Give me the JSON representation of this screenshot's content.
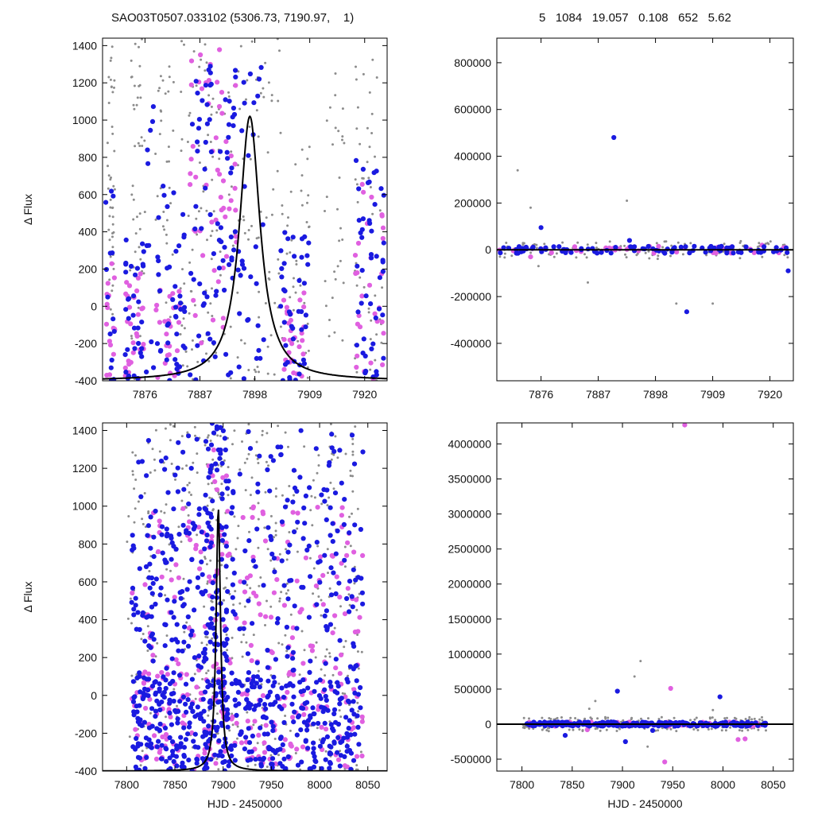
{
  "header": {
    "left": "SAO03T0507.033102 (5306.73, 7190.97,    1)",
    "right": "5   1084   19.057   0.108   652   5.62"
  },
  "colors": {
    "blue": "#1a1ae0",
    "magenta": "#e060e0",
    "gray": "#8c8c8c",
    "model": "#000000"
  },
  "chart_data": [
    {
      "type": "scatter",
      "id": "top-left",
      "title": "",
      "xlabel": "",
      "ylabel": "Δ Flux",
      "xlim": [
        7867.5,
        7924.5
      ],
      "ylim": [
        -400,
        1440
      ],
      "xticks": [
        7876,
        7887,
        7898,
        7909,
        7920
      ],
      "yticks": [
        -400,
        -200,
        0,
        200,
        400,
        600,
        800,
        1000,
        1200,
        1400
      ],
      "model": {
        "type": "lorentzian",
        "center": 7897.0,
        "amplitude": 1420,
        "baseline": -400,
        "width": 2.5
      },
      "series": [
        {
          "color": "gray",
          "clusters": [
            [
              7868.5,
              7870,
              -50,
              1400,
              45
            ],
            [
              7873,
              7876,
              -400,
              1440,
              45
            ],
            [
              7878,
              7882,
              -100,
              1300,
              35
            ],
            [
              7883,
              7891,
              -400,
              1440,
              80
            ],
            [
              7891,
              7904,
              -400,
              1440,
              90
            ],
            [
              7904,
              7909,
              -400,
              900,
              35
            ],
            [
              7912,
              7916,
              -200,
              1300,
              30
            ],
            [
              7918,
              7924,
              -400,
              1440,
              45
            ]
          ]
        },
        {
          "color": "magenta",
          "clusters": [
            [
              7868,
              7870,
              -400,
              300,
              16
            ],
            [
              7872,
              7876,
              -400,
              200,
              28
            ],
            [
              7878,
              7883,
              -400,
              100,
              28
            ],
            [
              7885,
              7895,
              -200,
              1440,
              55
            ],
            [
              7903,
              7908,
              -400,
              100,
              28
            ],
            [
              7918,
              7924,
              -400,
              700,
              30
            ]
          ]
        },
        {
          "color": "blue",
          "clusters": [
            [
              7868,
              7870,
              -400,
              650,
              14
            ],
            [
              7872,
              7876,
              -400,
              400,
              34
            ],
            [
              7876,
              7878,
              -400,
              1100,
              10
            ],
            [
              7878,
              7884,
              -400,
              650,
              42
            ],
            [
              7885,
              7896,
              -400,
              1440,
              90
            ],
            [
              7896,
              7900,
              -300,
              1300,
              18
            ],
            [
              7903,
              7909,
              -400,
              400,
              42
            ],
            [
              7918,
              7924,
              -400,
              800,
              48
            ]
          ]
        }
      ]
    },
    {
      "type": "scatter",
      "id": "top-right",
      "title": "",
      "xlabel": "",
      "ylabel": "",
      "xlim": [
        7867.5,
        7924.5
      ],
      "ylim": [
        -560000,
        905000
      ],
      "xticks": [
        7876,
        7887,
        7898,
        7909,
        7920
      ],
      "yticks": [
        -400000,
        -200000,
        0,
        200000,
        400000,
        600000,
        800000
      ],
      "model": {
        "type": "flat",
        "value": 0
      },
      "series": [
        {
          "color": "gray",
          "clusters": [
            [
              7868,
              7924,
              -40000,
              40000,
              120
            ]
          ],
          "points": [
            [
              7871.5,
              340000
            ],
            [
              7874,
              180000
            ],
            [
              7875.5,
              -70000
            ],
            [
              7885,
              -140000
            ],
            [
              7892.5,
              210000
            ],
            [
              7902,
              -230000
            ],
            [
              7909,
              -230000
            ]
          ]
        },
        {
          "color": "magenta",
          "clusters": [
            [
              7868,
              7924,
              -15000,
              15000,
              40
            ]
          ],
          "points": [
            [
              7874,
              -30000
            ],
            [
              7918.5,
              20000
            ]
          ]
        },
        {
          "color": "blue",
          "clusters": [
            [
              7868,
              7924,
              -15000,
              15000,
              90
            ]
          ],
          "points": [
            [
              7876,
              95000
            ],
            [
              7890,
              480000
            ],
            [
              7893,
              40000
            ],
            [
              7904,
              -265000
            ],
            [
              7923.5,
              -90000
            ]
          ]
        }
      ]
    },
    {
      "type": "scatter",
      "id": "bottom-left",
      "title": "",
      "xlabel": "HJD - 2450000",
      "ylabel": "Δ Flux",
      "xlim": [
        7775,
        8070
      ],
      "ylim": [
        -400,
        1440
      ],
      "xticks": [
        7800,
        7850,
        7900,
        7950,
        8000,
        8050
      ],
      "yticks": [
        -400,
        -200,
        0,
        200,
        400,
        600,
        800,
        1000,
        1200,
        1400
      ],
      "model": {
        "type": "lorentzian",
        "center": 7895.0,
        "amplitude": 1390,
        "baseline": -400,
        "width": 2.7
      },
      "series": [
        {
          "color": "gray",
          "clusters": [
            [
              7800,
              8045,
              -400,
              1440,
              420
            ],
            [
              7880,
              7905,
              -400,
              1440,
              60
            ]
          ]
        },
        {
          "color": "magenta",
          "clusters": [
            [
              7805,
              8045,
              -400,
              1000,
              200
            ],
            [
              7805,
              8045,
              -400,
              200,
              120
            ],
            [
              7885,
              7905,
              600,
              1300,
              20
            ]
          ]
        },
        {
          "color": "blue",
          "clusters": [
            [
              7805,
              8045,
              -400,
              1400,
              380
            ],
            [
              7805,
              8045,
              -400,
              100,
              300
            ],
            [
              7880,
              7905,
              -200,
              1440,
              90
            ],
            [
              7820,
              7880,
              -400,
              900,
              80
            ]
          ]
        }
      ]
    },
    {
      "type": "scatter",
      "id": "bottom-right",
      "title": "",
      "xlabel": "HJD - 2450000",
      "ylabel": "",
      "xlim": [
        7775,
        8070
      ],
      "ylim": [
        -670000,
        4300000
      ],
      "xticks": [
        7800,
        7850,
        7900,
        7950,
        8000,
        8050
      ],
      "yticks": [
        -500000,
        0,
        500000,
        1000000,
        1500000,
        2000000,
        2500000,
        3000000,
        3500000,
        4000000
      ],
      "model": {
        "type": "flat",
        "value": 0
      },
      "series": [
        {
          "color": "gray",
          "clusters": [
            [
              7800,
              8045,
              -100000,
              100000,
              200
            ]
          ],
          "points": [
            [
              7873,
              330000
            ],
            [
              7918,
              900000
            ],
            [
              7912,
              680000
            ],
            [
              7925,
              -320000
            ],
            [
              7867,
              220000
            ],
            [
              7990,
              200000
            ]
          ]
        },
        {
          "color": "magenta",
          "clusters": [
            [
              7805,
              8045,
              -30000,
              30000,
              60
            ]
          ],
          "points": [
            [
              7962,
              4270000
            ],
            [
              7948,
              510000
            ],
            [
              7942,
              -540000
            ],
            [
              8015,
              -220000
            ],
            [
              8022,
              -210000
            ],
            [
              7865,
              -80000
            ]
          ]
        },
        {
          "color": "blue",
          "clusters": [
            [
              7805,
              8045,
              -30000,
              30000,
              250
            ]
          ],
          "points": [
            [
              7895,
              470000
            ],
            [
              7997,
              390000
            ],
            [
              7843,
              -160000
            ],
            [
              7903,
              -250000
            ],
            [
              7930,
              -90000
            ]
          ]
        }
      ]
    }
  ]
}
